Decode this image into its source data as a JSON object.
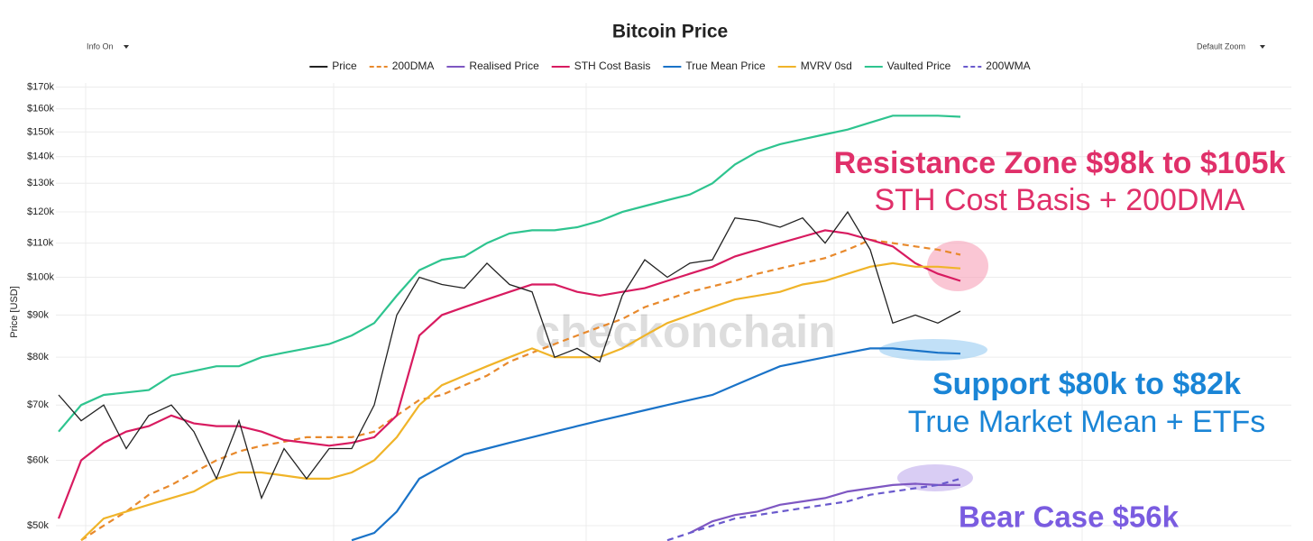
{
  "chart_data": {
    "type": "line",
    "title": "Bitcoin Price",
    "controls": {
      "left": "Info On",
      "right": "Default Zoom"
    },
    "ylabel": "Price [USD]",
    "watermark": "checkonchain",
    "log_scale": true,
    "grid": true,
    "ylim": [
      47900,
      172000
    ],
    "yticks": [
      {
        "value": 50000,
        "label": "$50k"
      },
      {
        "value": 60000,
        "label": "$60k"
      },
      {
        "value": 70000,
        "label": "$70k"
      },
      {
        "value": 80000,
        "label": "$80k"
      },
      {
        "value": 90000,
        "label": "$90k"
      },
      {
        "value": 100000,
        "label": "$100k"
      },
      {
        "value": 110000,
        "label": "$110k"
      },
      {
        "value": 120000,
        "label": "$120k"
      },
      {
        "value": 130000,
        "label": "$130k"
      },
      {
        "value": 140000,
        "label": "$140k"
      },
      {
        "value": 150000,
        "label": "$150k"
      },
      {
        "value": 160000,
        "label": "$160k"
      },
      {
        "value": 170000,
        "label": "$170k"
      }
    ],
    "categories": [
      null,
      null,
      null,
      null,
      null,
      null,
      null,
      null,
      null,
      null,
      null,
      null,
      null,
      null,
      null,
      null,
      null,
      null,
      null,
      null,
      null,
      null,
      null,
      null,
      null,
      null,
      null,
      null,
      null,
      null,
      null,
      null,
      null,
      null,
      null,
      null,
      null,
      null,
      null,
      null,
      null
    ],
    "series": [
      {
        "name": "Price",
        "color": "#222222",
        "style": "solid",
        "values": [
          72000,
          67000,
          70000,
          62000,
          68000,
          70000,
          65000,
          57000,
          67000,
          54000,
          62000,
          57000,
          62000,
          62000,
          70000,
          90000,
          100000,
          98000,
          97000,
          104000,
          98000,
          96000,
          80000,
          82000,
          79000,
          95000,
          105000,
          100000,
          104000,
          105000,
          118000,
          117000,
          115000,
          118000,
          110000,
          120000,
          108000,
          88000,
          90000,
          88000,
          91000
        ]
      },
      {
        "name": "200DMA",
        "color": "#e8892c",
        "style": "dashed",
        "values": [
          null,
          48000,
          50000,
          52000,
          54500,
          56000,
          58000,
          60000,
          61500,
          62500,
          63200,
          64000,
          64000,
          64000,
          65000,
          68000,
          71000,
          72000,
          74000,
          76000,
          79000,
          81000,
          83000,
          85000,
          87000,
          89000,
          92000,
          94000,
          96000,
          97500,
          99000,
          101000,
          102500,
          104000,
          105500,
          108000,
          111000,
          110000,
          109000,
          108000,
          106500
        ]
      },
      {
        "name": "Realised Price",
        "color": "#7e57c2",
        "style": "solid",
        "values": [
          null,
          null,
          null,
          null,
          null,
          null,
          null,
          null,
          null,
          null,
          null,
          null,
          null,
          null,
          null,
          null,
          null,
          null,
          null,
          null,
          null,
          null,
          null,
          null,
          null,
          null,
          null,
          null,
          49000,
          50600,
          51500,
          52000,
          53000,
          53500,
          54000,
          55000,
          55500,
          56000,
          56200,
          56000,
          56000
        ]
      },
      {
        "name": "STH Cost Basis",
        "color": "#d81b60",
        "style": "solid",
        "values": [
          51000,
          60000,
          63000,
          65000,
          66000,
          68000,
          66500,
          66000,
          66000,
          65000,
          63500,
          63000,
          62500,
          63000,
          64000,
          68000,
          85000,
          90000,
          92000,
          94000,
          96000,
          98000,
          98000,
          96000,
          95000,
          96000,
          97000,
          99000,
          101000,
          103000,
          106000,
          108000,
          110000,
          112000,
          114000,
          113000,
          111000,
          109000,
          104000,
          101000,
          99000
        ]
      },
      {
        "name": "True Mean Price",
        "color": "#1a73c8",
        "style": "solid",
        "values": [
          null,
          null,
          null,
          null,
          null,
          null,
          null,
          null,
          null,
          null,
          null,
          null,
          null,
          48000,
          49000,
          52000,
          57000,
          59000,
          61000,
          62000,
          63000,
          64000,
          65000,
          66000,
          67000,
          68000,
          69000,
          70000,
          71000,
          72000,
          74000,
          76000,
          78000,
          79000,
          80000,
          81000,
          82000,
          82000,
          81500,
          81000,
          80800
        ]
      },
      {
        "name": "MVRV 0sd",
        "color": "#f0b429",
        "style": "solid",
        "values": [
          null,
          48000,
          51000,
          52000,
          53000,
          54000,
          55000,
          57000,
          58000,
          58000,
          57500,
          57000,
          57000,
          58000,
          60000,
          64000,
          70000,
          74000,
          76000,
          78000,
          80000,
          82000,
          80000,
          80000,
          80000,
          82000,
          85000,
          88000,
          90000,
          92000,
          94000,
          95000,
          96000,
          98000,
          99000,
          101000,
          103000,
          104000,
          103000,
          103000,
          102500
        ]
      },
      {
        "name": "Vaulted Price",
        "color": "#2ec48f",
        "style": "solid",
        "values": [
          65000,
          70000,
          72000,
          72500,
          73000,
          76000,
          77000,
          78000,
          78000,
          80000,
          81000,
          82000,
          83000,
          85000,
          88000,
          95000,
          102000,
          105000,
          106000,
          110000,
          113000,
          114000,
          114000,
          115000,
          117000,
          120000,
          122000,
          124000,
          126000,
          130000,
          137000,
          142000,
          145000,
          147000,
          149000,
          151000,
          154000,
          157000,
          157000,
          157000,
          156500
        ]
      },
      {
        "name": "200WMA",
        "color": "#6a5acd",
        "style": "dashed",
        "values": [
          null,
          null,
          null,
          null,
          null,
          null,
          null,
          null,
          null,
          null,
          null,
          null,
          null,
          null,
          null,
          null,
          null,
          null,
          null,
          null,
          null,
          null,
          null,
          null,
          null,
          null,
          null,
          48000,
          49000,
          50000,
          51000,
          51500,
          52000,
          52500,
          53000,
          53500,
          54500,
          55000,
          55500,
          56000,
          57000
        ]
      }
    ],
    "annotations": [
      {
        "text": "Resistance Zone $98k to $105k",
        "color": "#e0306a",
        "bold": true
      },
      {
        "text": "STH Cost Basis + 200DMA",
        "color": "#e0306a",
        "bold": false
      },
      {
        "text": "Support $80k to $82k",
        "color": "#1a85d6",
        "bold": true
      },
      {
        "text": "True Market Mean + ETFs",
        "color": "#1a85d6",
        "bold": false
      },
      {
        "text": "Bear Case $56k",
        "color": "#7a5ce0",
        "bold": true
      }
    ]
  }
}
